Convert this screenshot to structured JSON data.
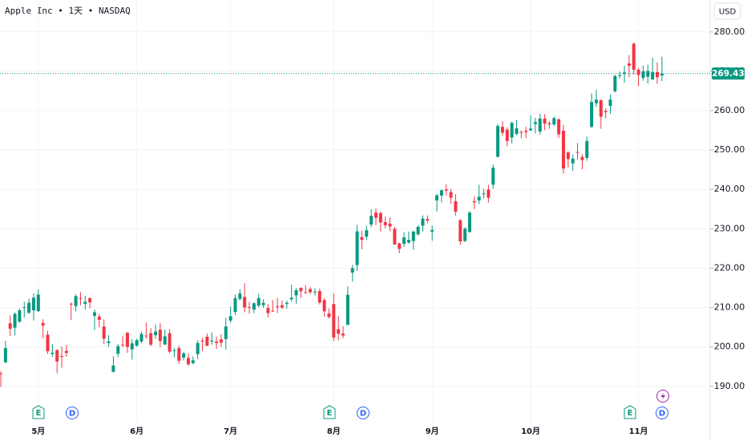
{
  "chart_data": {
    "type": "candlestick",
    "title": "Apple Inc • 1天 • NASDAQ",
    "currency": "USD",
    "up_color": "#089981",
    "down_color": "#f23645",
    "grid": true,
    "ylim": [
      186.3,
      288.1
    ],
    "yticks": [
      {
        "value": 190,
        "label": "190.00"
      },
      {
        "value": 200,
        "label": "200.00"
      },
      {
        "value": 210,
        "label": "210.00"
      },
      {
        "value": 220,
        "label": "220.00"
      },
      {
        "value": 230,
        "label": "230.00"
      },
      {
        "value": 240,
        "label": "240.00"
      },
      {
        "value": 250,
        "label": "250.00"
      },
      {
        "value": 260,
        "label": "260.00"
      },
      {
        "value": 270,
        "label": "270.00"
      },
      {
        "value": 280,
        "label": "280.00"
      }
    ],
    "categories": [
      null,
      null,
      null,
      null,
      null,
      null,
      null,
      null,
      "5月",
      null,
      null,
      null,
      null,
      null,
      null,
      null,
      null,
      null,
      null,
      null,
      null,
      null,
      null,
      null,
      null,
      null,
      null,
      null,
      null,
      "6月",
      null,
      null,
      null,
      null,
      null,
      null,
      null,
      null,
      null,
      null,
      null,
      null,
      null,
      null,
      null,
      null,
      null,
      null,
      null,
      "7月",
      null,
      null,
      null,
      null,
      null,
      null,
      null,
      null,
      null,
      null,
      null,
      null,
      null,
      null,
      null,
      null,
      null,
      null,
      null,
      null,
      null,
      "8月",
      null,
      null,
      null,
      null,
      null,
      null,
      null,
      null,
      null,
      null,
      null,
      null,
      null,
      null,
      null,
      null,
      null,
      null,
      null,
      null,
      "9月",
      null,
      null,
      null,
      null,
      null,
      null,
      null,
      null,
      null,
      null,
      null,
      null,
      null,
      null,
      null,
      null,
      null,
      null,
      null,
      null,
      "10月",
      null,
      null,
      null,
      null,
      null,
      null,
      null,
      null,
      null,
      null,
      null,
      null,
      null,
      null,
      null,
      null,
      null,
      null,
      null,
      null,
      null,
      null,
      "11月",
      null,
      null,
      null,
      null,
      null
    ],
    "ohlc": [
      [
        193.3,
        193.8,
        189.8,
        193.2
      ],
      [
        196.1,
        201.6,
        195.9,
        199.7
      ],
      [
        206.0,
        208.0,
        202.8,
        204.6
      ],
      [
        204.9,
        208.8,
        202.9,
        208.4
      ],
      [
        206.4,
        209.8,
        206.2,
        209.3
      ],
      [
        210.0,
        211.5,
        207.5,
        210.1
      ],
      [
        208.7,
        212.2,
        208.4,
        211.2
      ],
      [
        209.3,
        213.6,
        206.7,
        212.5
      ],
      [
        209.1,
        214.6,
        208.9,
        213.3
      ],
      [
        206.1,
        207.0,
        202.2,
        205.4
      ],
      [
        203.1,
        204.1,
        198.2,
        198.9
      ],
      [
        198.2,
        200.7,
        197.5,
        198.5
      ],
      [
        199.2,
        199.4,
        193.3,
        196.3
      ],
      [
        197.7,
        200.1,
        194.7,
        197.5
      ],
      [
        199.0,
        200.5,
        197.5,
        198.5
      ],
      [
        210.97,
        211.3,
        206.8,
        210.8
      ],
      [
        210.4,
        213.4,
        209.0,
        212.9
      ],
      [
        212.4,
        213.9,
        210.6,
        212.3
      ],
      [
        210.95,
        212.96,
        209.5,
        211.45
      ],
      [
        212.4,
        212.6,
        209.8,
        211.3
      ],
      [
        207.9,
        209.5,
        204.3,
        208.8
      ],
      [
        207.7,
        208.5,
        205.0,
        206.9
      ],
      [
        205.2,
        207.0,
        200.7,
        202.1
      ],
      [
        201.0,
        203.0,
        200.0,
        201.4
      ],
      [
        193.7,
        197.7,
        193.5,
        195.3
      ],
      [
        198.3,
        200.7,
        197.4,
        200.2
      ],
      [
        200.6,
        202.7,
        199.9,
        200.4
      ],
      [
        203.6,
        203.8,
        198.5,
        200.0
      ],
      [
        199.4,
        201.96,
        196.8,
        200.9
      ],
      [
        200.3,
        202.1,
        200.1,
        201.7
      ],
      [
        201.4,
        203.9,
        201.0,
        203.3
      ],
      [
        202.9,
        206.2,
        202.1,
        202.8
      ],
      [
        203.5,
        204.75,
        200.2,
        200.6
      ],
      [
        203.0,
        205.7,
        202.1,
        203.9
      ],
      [
        204.4,
        206.0,
        200.0,
        201.5
      ],
      [
        200.6,
        204.35,
        200.6,
        202.7
      ],
      [
        203.5,
        204.5,
        198.4,
        198.8
      ],
      [
        199.1,
        199.7,
        197.4,
        199.2
      ],
      [
        199.7,
        200.4,
        195.7,
        196.5
      ],
      [
        197.3,
        198.7,
        196.6,
        198.4
      ],
      [
        197.2,
        198.4,
        195.2,
        195.6
      ],
      [
        195.9,
        197.6,
        195.6,
        196.6
      ],
      [
        198.2,
        201.7,
        196.9,
        201.0
      ],
      [
        201.6,
        202.3,
        198.96,
        201.5
      ],
      [
        202.6,
        203.4,
        200.2,
        200.3
      ],
      [
        201.5,
        203.7,
        200.6,
        201.6
      ],
      [
        201.4,
        202.6,
        199.5,
        201.0
      ],
      [
        201.9,
        203.2,
        200.0,
        201.1
      ],
      [
        202.0,
        207.4,
        199.3,
        205.2
      ],
      [
        206.7,
        210.2,
        206.1,
        207.8
      ],
      [
        208.9,
        213.3,
        208.1,
        212.4
      ],
      [
        212.2,
        214.65,
        211.8,
        213.6
      ],
      [
        212.7,
        216.2,
        208.8,
        210.0
      ],
      [
        210.1,
        211.4,
        208.45,
        210.0
      ],
      [
        209.5,
        211.3,
        208.6,
        211.1
      ],
      [
        210.5,
        213.5,
        210.0,
        212.4
      ],
      [
        210.6,
        212.1,
        209.9,
        211.2
      ],
      [
        209.9,
        210.9,
        207.5,
        208.6
      ],
      [
        209.2,
        211.9,
        208.9,
        209.1
      ],
      [
        210.3,
        212.4,
        208.6,
        210.2
      ],
      [
        210.6,
        211.8,
        209.6,
        210.0
      ],
      [
        210.9,
        211.8,
        209.7,
        211.2
      ],
      [
        212.1,
        215.8,
        211.6,
        212.5
      ],
      [
        213.1,
        214.95,
        211.0,
        214.4
      ],
      [
        215.0,
        215.15,
        212.4,
        214.15
      ],
      [
        213.9,
        215.7,
        213.5,
        213.8
      ],
      [
        214.7,
        215.2,
        213.4,
        213.9
      ],
      [
        214.0,
        214.85,
        213.1,
        214.05
      ],
      [
        214.2,
        214.8,
        210.8,
        211.3
      ],
      [
        211.9,
        212.4,
        207.7,
        209.05
      ],
      [
        208.5,
        209.8,
        207.2,
        207.6
      ],
      [
        210.9,
        213.6,
        201.5,
        202.4
      ],
      [
        204.5,
        207.9,
        201.7,
        203.35
      ],
      [
        203.4,
        205.3,
        202.2,
        202.9
      ],
      [
        205.6,
        215.4,
        205.6,
        213.25
      ],
      [
        218.9,
        220.85,
        216.6,
        220.0
      ],
      [
        220.8,
        231.0,
        219.3,
        229.35
      ],
      [
        227.9,
        229.6,
        224.8,
        227.2
      ],
      [
        228.0,
        230.8,
        227.1,
        229.65
      ],
      [
        231.1,
        235.0,
        230.4,
        233.3
      ],
      [
        234.1,
        235.1,
        230.9,
        232.8
      ],
      [
        234.0,
        234.3,
        229.3,
        231.6
      ],
      [
        231.7,
        233.1,
        230.1,
        230.9
      ],
      [
        231.3,
        232.9,
        229.4,
        230.6
      ],
      [
        229.98,
        230.5,
        226.0,
        226.0
      ],
      [
        226.3,
        226.5,
        223.8,
        224.9
      ],
      [
        226.2,
        229.1,
        225.4,
        227.8
      ],
      [
        226.5,
        229.3,
        226.2,
        227.2
      ],
      [
        226.9,
        229.5,
        224.7,
        229.3
      ],
      [
        228.6,
        230.9,
        228.3,
        230.5
      ],
      [
        230.8,
        233.4,
        229.3,
        232.6
      ],
      [
        232.5,
        233.4,
        231.4,
        232.1
      ],
      [
        229.3,
        230.85,
        226.97,
        229.7
      ],
      [
        237.2,
        238.85,
        234.4,
        238.5
      ],
      [
        238.45,
        239.9,
        236.7,
        239.8
      ],
      [
        240.0,
        241.3,
        238.5,
        239.7
      ],
      [
        239.3,
        240.15,
        236.3,
        237.9
      ],
      [
        237.0,
        238.8,
        233.4,
        234.35
      ],
      [
        232.2,
        232.4,
        225.95,
        226.8
      ],
      [
        226.9,
        230.45,
        226.65,
        230.0
      ],
      [
        229.2,
        234.5,
        229.0,
        234.1
      ],
      [
        237.0,
        238.2,
        235.0,
        236.7
      ],
      [
        237.2,
        241.2,
        236.3,
        238.15
      ],
      [
        238.97,
        240.1,
        237.7,
        238.99
      ],
      [
        239.97,
        241.2,
        236.65,
        237.9
      ],
      [
        241.2,
        246.3,
        240.2,
        245.5
      ],
      [
        248.3,
        256.6,
        248.1,
        256.1
      ],
      [
        255.9,
        257.3,
        253.6,
        254.4
      ],
      [
        255.2,
        255.7,
        251.0,
        252.3
      ],
      [
        253.2,
        257.2,
        251.7,
        256.9
      ],
      [
        254.1,
        257.6,
        253.8,
        255.5
      ],
      [
        254.6,
        255.0,
        253.0,
        254.4
      ],
      [
        254.9,
        255.9,
        253.1,
        254.6
      ],
      [
        255.0,
        258.8,
        254.9,
        255.45
      ],
      [
        256.6,
        258.2,
        254.2,
        257.1
      ],
      [
        254.7,
        259.2,
        253.95,
        258.0
      ],
      [
        257.99,
        259.1,
        255.05,
        256.7
      ],
      [
        256.8,
        257.4,
        255.4,
        256.5
      ],
      [
        256.5,
        258.5,
        256.1,
        258.1
      ],
      [
        257.8,
        258.0,
        253.1,
        254.0
      ],
      [
        254.9,
        256.4,
        244.0,
        245.3
      ],
      [
        249.4,
        249.7,
        245.6,
        247.7
      ],
      [
        246.6,
        248.85,
        244.7,
        247.8
      ],
      [
        249.5,
        251.8,
        247.5,
        249.3
      ],
      [
        248.25,
        249.0,
        245.1,
        247.45
      ],
      [
        248.0,
        253.4,
        247.3,
        252.3
      ],
      [
        255.9,
        264.4,
        255.6,
        262.2
      ],
      [
        261.9,
        265.3,
        261.0,
        262.8
      ],
      [
        262.65,
        262.85,
        255.4,
        258.45
      ],
      [
        259.9,
        260.6,
        258.0,
        259.6
      ],
      [
        261.2,
        264.1,
        259.2,
        262.8
      ],
      [
        264.9,
        269.1,
        264.65,
        268.8
      ],
      [
        268.99,
        269.9,
        268.15,
        269.0
      ],
      [
        269.3,
        271.4,
        267.1,
        269.7
      ],
      [
        271.99,
        274.1,
        268.5,
        271.4
      ],
      [
        276.99,
        277.3,
        269.2,
        270.4
      ],
      [
        270.4,
        270.85,
        266.25,
        269.05
      ],
      [
        268.3,
        271.5,
        267.6,
        270.0
      ],
      [
        268.6,
        271.7,
        266.9,
        270.1
      ],
      [
        267.9,
        273.4,
        267.9,
        269.8
      ],
      [
        269.8,
        272.3,
        266.8,
        268.5
      ],
      [
        268.96,
        273.7,
        267.5,
        269.43
      ]
    ],
    "events": [
      "E",
      "D",
      "E",
      "D",
      "E",
      "D"
    ]
  }
}
